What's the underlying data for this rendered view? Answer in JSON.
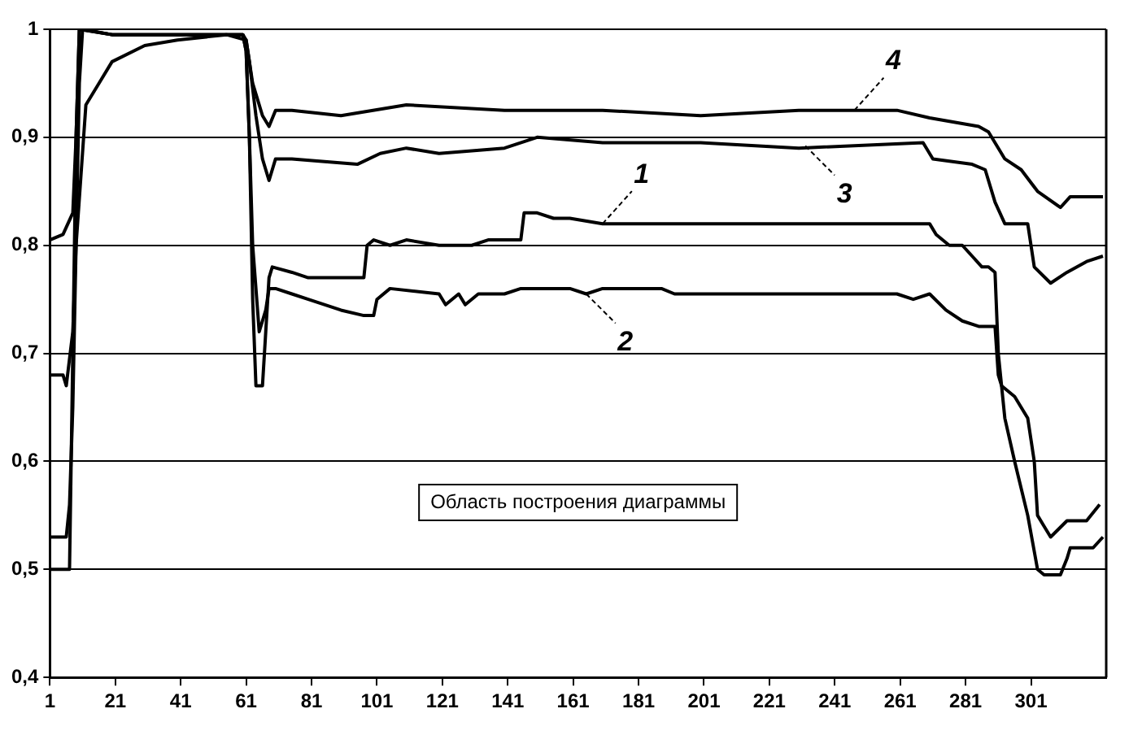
{
  "chart_data": {
    "type": "line",
    "xlim": [
      1,
      324
    ],
    "xticks": [
      1,
      21,
      41,
      61,
      81,
      101,
      121,
      141,
      161,
      181,
      201,
      221,
      241,
      261,
      281,
      301
    ],
    "ylim": [
      0.4,
      1
    ],
    "yticks": [
      {
        "value": 0.4,
        "label": "0,4"
      },
      {
        "value": 0.5,
        "label": "0,5"
      },
      {
        "value": 0.6,
        "label": "0,6"
      },
      {
        "value": 0.7,
        "label": "0,7"
      },
      {
        "value": 0.8,
        "label": "0,8"
      },
      {
        "value": 0.9,
        "label": "0,9"
      },
      1
    ],
    "grid": "y",
    "legend": false,
    "marker": "none",
    "line_style": "solid",
    "annotations": [
      {
        "text": "1",
        "x": 170,
        "y": 0.82
      },
      {
        "text": "2",
        "x": 165,
        "y": 0.755
      },
      {
        "text": "3",
        "x": 232,
        "y": 0.892
      },
      {
        "text": "4",
        "x": 247,
        "y": 0.925
      },
      "Область построения диаграммы"
    ],
    "series": [
      {
        "color": "#000000",
        "x": [
          1,
          6,
          7,
          8,
          9,
          10,
          11,
          20,
          40,
          60,
          61,
          62,
          63,
          64,
          66,
          67,
          68,
          69,
          75,
          80,
          90,
          97,
          98,
          100,
          105,
          110,
          120,
          125,
          130,
          135,
          140,
          145,
          146,
          150,
          155,
          160,
          170,
          200,
          240,
          270,
          272,
          276,
          280,
          283,
          286,
          288,
          290,
          291,
          293,
          296,
          300,
          303,
          305,
          310,
          312,
          313,
          318,
          320,
          323
        ],
        "values": [
          0.53,
          0.53,
          0.56,
          0.65,
          0.8,
          0.95,
          1,
          0.995,
          0.995,
          0.995,
          0.98,
          0.9,
          0.75,
          0.67,
          0.67,
          0.72,
          0.77,
          0.78,
          0.775,
          0.77,
          0.77,
          0.77,
          0.8,
          0.805,
          0.8,
          0.805,
          0.8,
          0.8,
          0.8,
          0.805,
          0.805,
          0.805,
          0.83,
          0.83,
          0.825,
          0.825,
          0.82,
          0.82,
          0.82,
          0.82,
          0.81,
          0.8,
          0.8,
          0.79,
          0.78,
          0.78,
          0.775,
          0.7,
          0.64,
          0.6,
          0.55,
          0.5,
          0.495,
          0.495,
          0.51,
          0.52,
          0.52,
          0.52,
          0.53
        ]
      },
      {
        "color": "#000000",
        "x": [
          1,
          7,
          8,
          9,
          10,
          20,
          40,
          60,
          61,
          62,
          63,
          65,
          67,
          68,
          70,
          75,
          80,
          90,
          97,
          100,
          101,
          105,
          120,
          122,
          126,
          128,
          132,
          140,
          145,
          160,
          165,
          170,
          188,
          192,
          195,
          230,
          260,
          265,
          270,
          275,
          280,
          285,
          290,
          291,
          292,
          296,
          300,
          302,
          303,
          305,
          307,
          312,
          318,
          322
        ],
        "values": [
          0.5,
          0.5,
          0.7,
          0.9,
          1,
          0.995,
          0.995,
          0.995,
          0.98,
          0.9,
          0.8,
          0.72,
          0.74,
          0.76,
          0.76,
          0.755,
          0.75,
          0.74,
          0.735,
          0.735,
          0.75,
          0.76,
          0.755,
          0.745,
          0.755,
          0.745,
          0.755,
          0.755,
          0.76,
          0.76,
          0.755,
          0.76,
          0.76,
          0.755,
          0.755,
          0.755,
          0.755,
          0.75,
          0.755,
          0.74,
          0.73,
          0.725,
          0.725,
          0.68,
          0.67,
          0.66,
          0.64,
          0.6,
          0.55,
          0.54,
          0.53,
          0.545,
          0.545,
          0.56
        ]
      },
      {
        "color": "#000000",
        "x": [
          1,
          5,
          6,
          8,
          9,
          12,
          16,
          20,
          30,
          40,
          55,
          61,
          62,
          64,
          66,
          68,
          70,
          75,
          95,
          102,
          110,
          120,
          140,
          150,
          170,
          200,
          230,
          268,
          271,
          283,
          287,
          290,
          293,
          300,
          302,
          307,
          312,
          318,
          323
        ],
        "values": [
          0.68,
          0.68,
          0.67,
          0.72,
          0.8,
          0.93,
          0.95,
          0.97,
          0.985,
          0.99,
          0.995,
          0.99,
          0.97,
          0.92,
          0.88,
          0.86,
          0.88,
          0.88,
          0.875,
          0.885,
          0.89,
          0.885,
          0.89,
          0.9,
          0.895,
          0.895,
          0.89,
          0.895,
          0.88,
          0.875,
          0.87,
          0.84,
          0.82,
          0.82,
          0.78,
          0.765,
          0.775,
          0.785,
          0.79
        ]
      },
      {
        "color": "#000000",
        "x": [
          1,
          5,
          8,
          9,
          10,
          20,
          40,
          60,
          61,
          63,
          66,
          68,
          70,
          75,
          90,
          110,
          140,
          170,
          200,
          230,
          260,
          270,
          285,
          288,
          293,
          298,
          303,
          310,
          313,
          323
        ],
        "values": [
          0.805,
          0.81,
          0.83,
          0.9,
          1,
          0.995,
          0.995,
          0.995,
          0.99,
          0.95,
          0.92,
          0.91,
          0.925,
          0.925,
          0.92,
          0.93,
          0.925,
          0.925,
          0.92,
          0.925,
          0.925,
          0.918,
          0.91,
          0.905,
          0.88,
          0.87,
          0.85,
          0.835,
          0.845,
          0.845
        ]
      }
    ]
  }
}
